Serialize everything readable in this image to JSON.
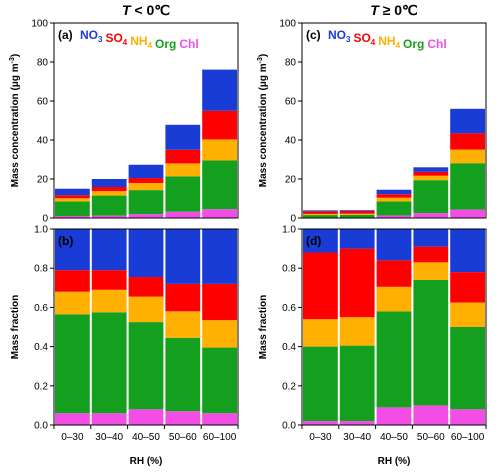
{
  "colors": {
    "NO3": "#1a3cd6",
    "SO4": "#ff0000",
    "NH4": "#ffb000",
    "Org": "#14a01e",
    "Chl": "#f24ee6"
  },
  "chart_data": {
    "type": "bar",
    "stacked": true,
    "categories": [
      "0–30",
      "30–40",
      "40–50",
      "50–60",
      "60–100"
    ],
    "xlabel": "RH (%)",
    "legend": {
      "placement": "top",
      "entries": [
        {
          "key": "NO3",
          "base": "NO",
          "sub": "3"
        },
        {
          "key": "SO4",
          "base": "SO",
          "sub": "4"
        },
        {
          "key": "NH4",
          "base": "NH",
          "sub": "4"
        },
        {
          "key": "Org",
          "base": "Org",
          "sub": ""
        },
        {
          "key": "Chl",
          "base": "Chl",
          "sub": ""
        }
      ]
    },
    "columns": [
      {
        "title_prefix": "T",
        "title_rest": " < 0℃",
        "panels": [
          {
            "label": "(a)",
            "ylabel": "Mass concentration (μg m",
            "ylabel_sup": "-3",
            "ylabel_tail": ")",
            "ylim": [
              0,
              100
            ],
            "yticks": [
              0,
              20,
              40,
              60,
              80,
              100
            ],
            "show_legend": true,
            "series": [
              {
                "name": "Chl",
                "values": [
                  1.0,
                  1.2,
                  2.0,
                  3.2,
                  4.5
                ]
              },
              {
                "name": "Org",
                "values": [
                  7.5,
                  10.3,
                  12.3,
                  18.2,
                  25.0
                ]
              },
              {
                "name": "NH4",
                "values": [
                  1.6,
                  2.3,
                  3.6,
                  6.6,
                  10.8
                ]
              },
              {
                "name": "SO4",
                "values": [
                  1.6,
                  2.1,
                  2.6,
                  7.0,
                  14.7
                ]
              },
              {
                "name": "NO3",
                "values": [
                  3.3,
                  4.1,
                  6.8,
                  12.8,
                  21.1
                ]
              }
            ]
          },
          {
            "label": "(b)",
            "ylabel": "Mass fraction",
            "ylabel_sup": "",
            "ylabel_tail": "",
            "ylim": [
              0,
              1
            ],
            "yticks": [
              0.0,
              0.2,
              0.4,
              0.6,
              0.8,
              1.0
            ],
            "show_legend": false,
            "series": [
              {
                "name": "Chl",
                "values": [
                  0.06,
                  0.06,
                  0.08,
                  0.07,
                  0.06
                ]
              },
              {
                "name": "Org",
                "values": [
                  0.505,
                  0.515,
                  0.445,
                  0.375,
                  0.335
                ]
              },
              {
                "name": "NH4",
                "values": [
                  0.115,
                  0.115,
                  0.13,
                  0.135,
                  0.14
                ]
              },
              {
                "name": "SO4",
                "values": [
                  0.11,
                  0.1,
                  0.1,
                  0.14,
                  0.185
                ]
              },
              {
                "name": "NO3",
                "values": [
                  0.21,
                  0.21,
                  0.245,
                  0.28,
                  0.28
                ]
              }
            ]
          }
        ]
      },
      {
        "title_prefix": "T",
        "title_rest": " ≥ 0℃",
        "panels": [
          {
            "label": "(c)",
            "ylabel": "Mass concentration (μg m",
            "ylabel_sup": "-3",
            "ylabel_tail": ")",
            "ylim": [
              0,
              100
            ],
            "yticks": [
              0,
              20,
              40,
              60,
              80,
              100
            ],
            "show_legend": true,
            "series": [
              {
                "name": "Chl",
                "values": [
                  0.1,
                  0.1,
                  1.3,
                  2.5,
                  4.3
                ]
              },
              {
                "name": "Org",
                "values": [
                  1.4,
                  1.5,
                  7.2,
                  16.9,
                  23.8
                ]
              },
              {
                "name": "NH4",
                "values": [
                  0.6,
                  0.6,
                  1.9,
                  2.3,
                  7.0
                ]
              },
              {
                "name": "SO4",
                "values": [
                  1.3,
                  1.4,
                  1.8,
                  2.0,
                  8.3
                ]
              },
              {
                "name": "NO3",
                "values": [
                  0.5,
                  0.4,
                  2.3,
                  2.3,
                  12.6
                ]
              }
            ]
          },
          {
            "label": "(d)",
            "ylabel": "Mass fraction",
            "ylabel_sup": "",
            "ylabel_tail": "",
            "ylim": [
              0,
              1
            ],
            "yticks": [
              0.0,
              0.2,
              0.4,
              0.6,
              0.8,
              1.0
            ],
            "show_legend": false,
            "series": [
              {
                "name": "Chl",
                "values": [
                  0.02,
                  0.02,
                  0.09,
                  0.1,
                  0.08
                ]
              },
              {
                "name": "Org",
                "values": [
                  0.38,
                  0.385,
                  0.49,
                  0.64,
                  0.42
                ]
              },
              {
                "name": "NH4",
                "values": [
                  0.14,
                  0.145,
                  0.125,
                  0.09,
                  0.125
                ]
              },
              {
                "name": "SO4",
                "values": [
                  0.34,
                  0.35,
                  0.135,
                  0.08,
                  0.155
                ]
              },
              {
                "name": "NO3",
                "values": [
                  0.12,
                  0.1,
                  0.16,
                  0.09,
                  0.22
                ]
              }
            ]
          }
        ]
      }
    ]
  }
}
